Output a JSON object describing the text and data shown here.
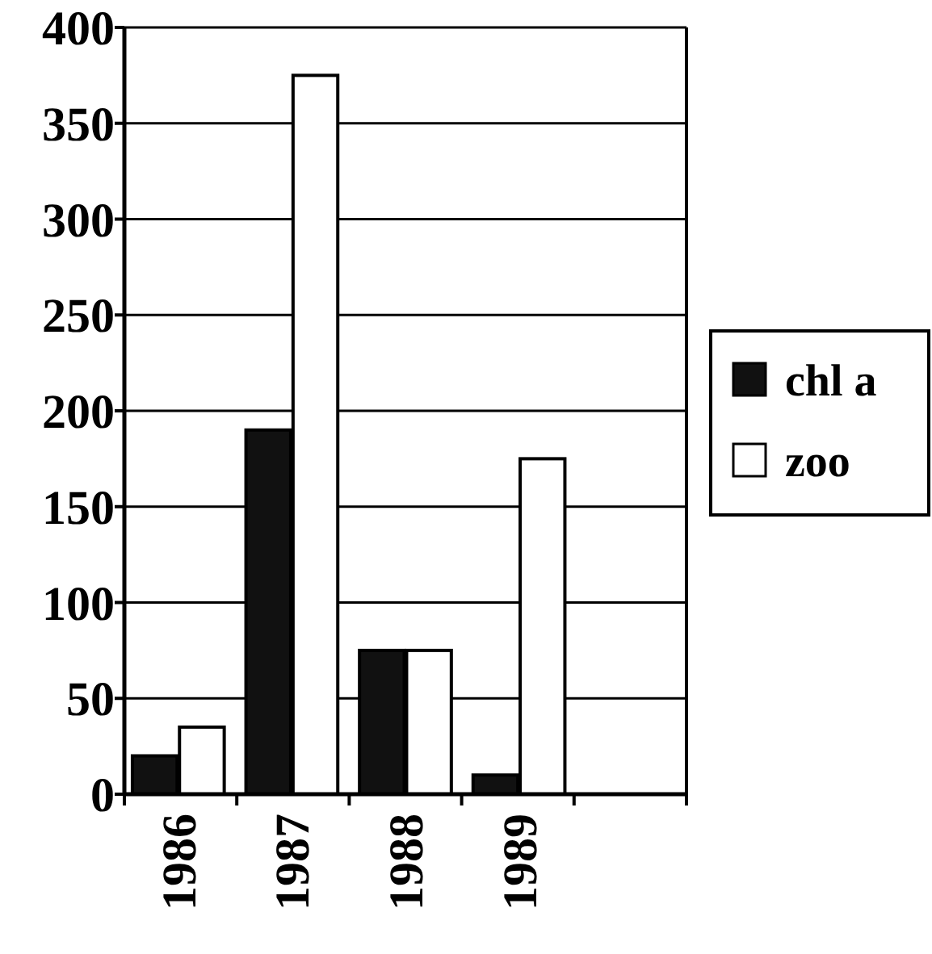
{
  "chart_data": {
    "type": "bar",
    "categories": [
      "1986",
      "1987",
      "1988",
      "1989",
      null
    ],
    "series": [
      {
        "name": "chl a",
        "color": "#111111",
        "values": [
          20,
          190,
          75,
          10,
          null
        ]
      },
      {
        "name": "zoo",
        "color": "#ffffff",
        "values": [
          35,
          375,
          75,
          175,
          null
        ]
      }
    ],
    "ylim": [
      0,
      400
    ],
    "yticks": [
      0,
      50,
      100,
      150,
      200,
      250,
      300,
      350,
      400
    ],
    "grid": "y",
    "legend": "right"
  }
}
